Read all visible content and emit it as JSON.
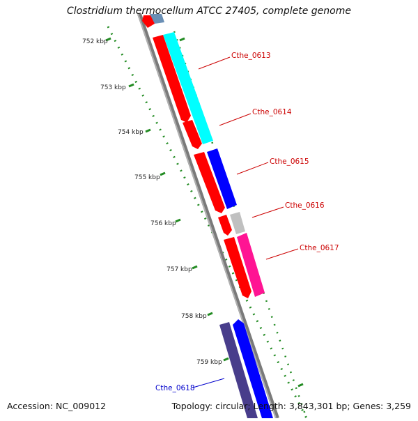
{
  "title": "Clostridium thermocellum ATCC 27405, complete genome",
  "accession_text": "Accession: NC_009012",
  "summary_text": "Topology: circular; Length: 3,843,301 bp; Genes: 3,259",
  "ruler_labels": [
    "752 kbp",
    "753 kbp",
    "754 kbp",
    "755 kbp",
    "756 kbp",
    "757 kbp",
    "758 kbp",
    "759 kbp"
  ],
  "gene_labels": [
    {
      "text": "Cthe_0613",
      "color": "#cc0000"
    },
    {
      "text": "Cthe_0614",
      "color": "#cc0000"
    },
    {
      "text": "Cthe_0615",
      "color": "#cc0000"
    },
    {
      "text": "Cthe_0616",
      "color": "#cc0000"
    },
    {
      "text": "Cthe_0617",
      "color": "#cc0000"
    },
    {
      "text": "Cthe_0618",
      "color": "#0000cc"
    }
  ],
  "colors": {
    "cds": "#ff0000",
    "backbone": "#888888",
    "tick": "#228b22",
    "cyan": "#00ffff",
    "blue": "#0000ff",
    "gray": "#c0c0c0",
    "pink": "#ff1493",
    "indigo": "#483d8b"
  }
}
